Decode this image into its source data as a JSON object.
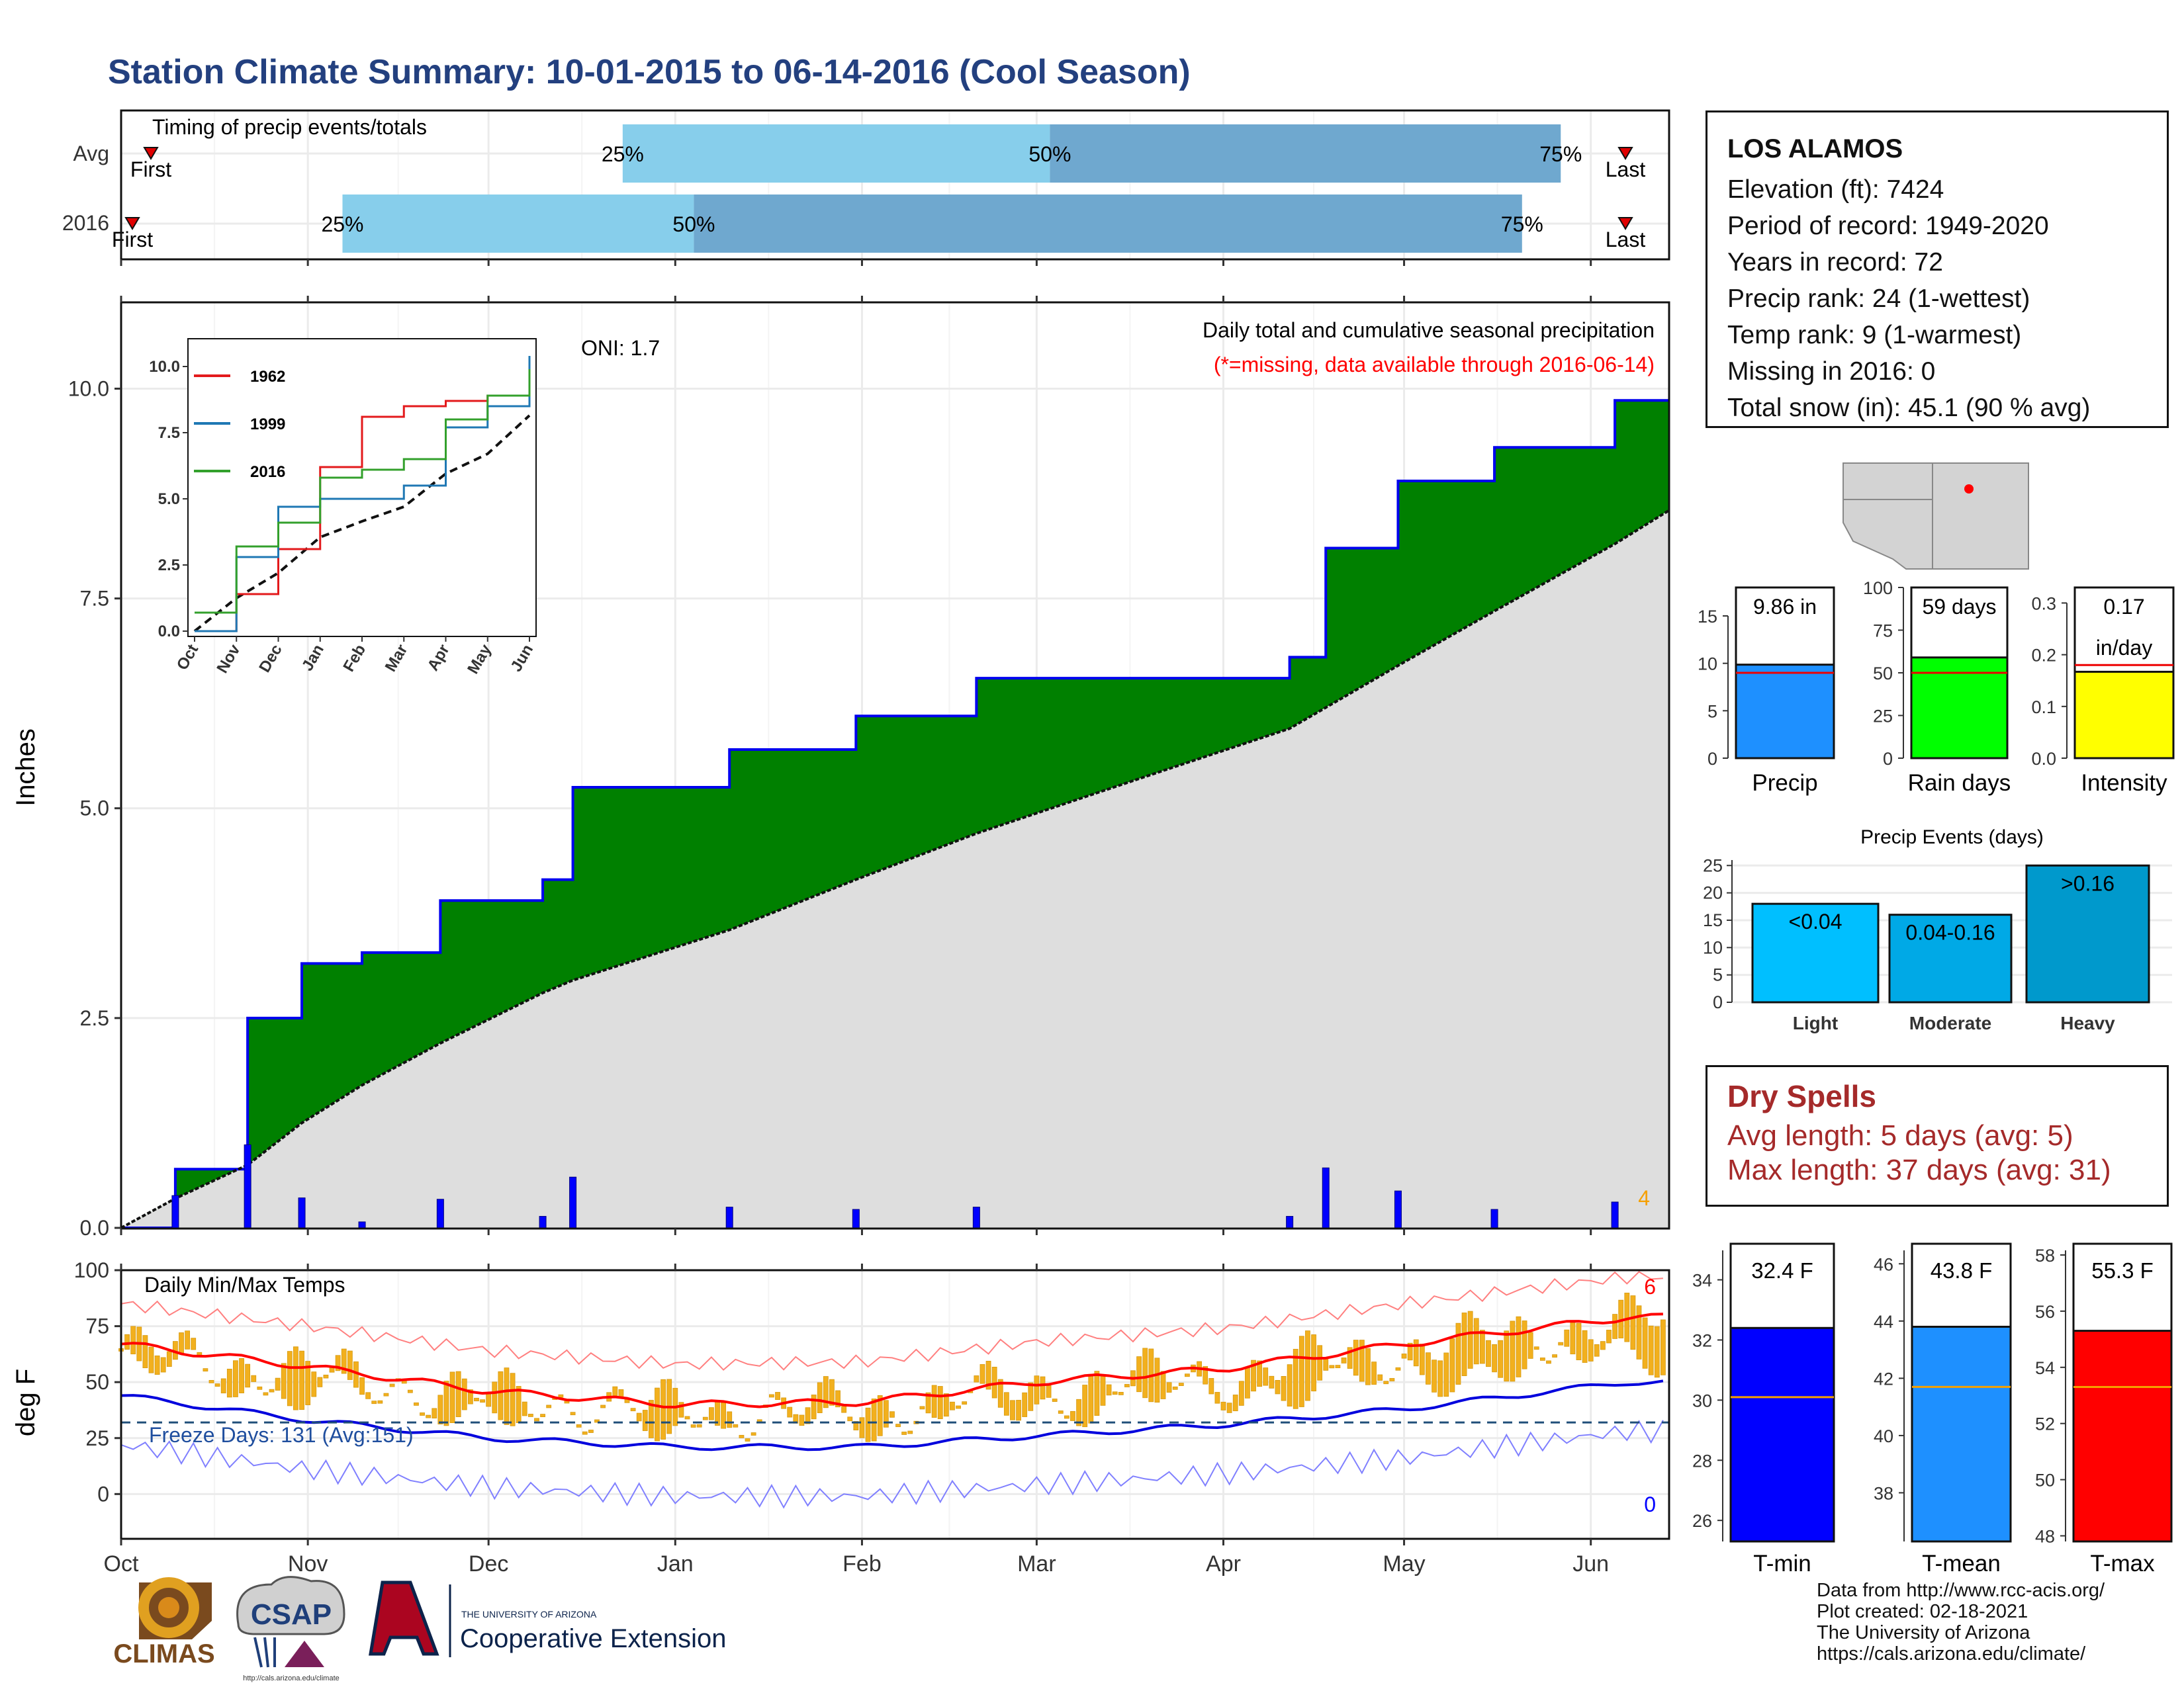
{
  "title": "Station Climate Summary: 10-01-2015 to 06-14-2016 (Cool Season)",
  "timing": {
    "label": "Timing of precip events/totals",
    "rows": [
      {
        "name": "Avg",
        "first": "First",
        "last": "Last",
        "p25": "25%",
        "p50": "50%",
        "p75": "75%",
        "q25": 0.324,
        "q50": 0.6,
        "q75": 0.93,
        "first_pos": 0.02,
        "last_pos": 0.998
      },
      {
        "name": "2016",
        "first": "First",
        "last": "Last",
        "p25": "25%",
        "p50": "50%",
        "p75": "75%",
        "q25": 0.143,
        "q50": 0.37,
        "q75": 0.905,
        "first_pos": 0.006,
        "last_pos": 0.998
      }
    ]
  },
  "precip_panel": {
    "title": "Daily total and cumulative seasonal precipitation",
    "missing_note": "(*=missing, data available through 2016-06-14)",
    "oni": "ONI: 1.7",
    "ylabel": "Inches",
    "yticks": [
      "0.0",
      "2.5",
      "5.0",
      "7.5",
      "10.0"
    ],
    "corner_count": "4"
  },
  "inset": {
    "yticks": [
      "0.0",
      "2.5",
      "5.0",
      "7.5",
      "10.0"
    ],
    "xticks": [
      "Oct",
      "Nov",
      "Dec",
      "Jan",
      "Feb",
      "Mar",
      "Apr",
      "May",
      "Jun"
    ],
    "legend": [
      {
        "name": "1962",
        "color": "#e31a1c"
      },
      {
        "name": "1999",
        "color": "#1f78b4"
      },
      {
        "name": "2016",
        "color": "#33a02c"
      }
    ]
  },
  "temp_panel": {
    "label": "Daily Min/Max Temps",
    "freeze": "Freeze Days: 131 (Avg:151)",
    "ylabel": "deg F",
    "yticks": [
      "0",
      "25",
      "50",
      "75",
      "100"
    ],
    "count_top": "6",
    "count_bottom": "0"
  },
  "months": [
    "Oct",
    "Nov",
    "Dec",
    "Jan",
    "Feb",
    "Mar",
    "Apr",
    "May",
    "Jun"
  ],
  "station": {
    "name": "LOS ALAMOS",
    "lines": [
      "Elevation (ft): 7424",
      "Period of record: 1949-2020",
      "Years in record: 72",
      "Precip rank: 24 (1-wettest)",
      "Temp rank: 9 (1-warmest)",
      "Missing in 2016: 0",
      "Total snow (in): 45.1 (90 % avg)"
    ]
  },
  "mini_bars": [
    {
      "label": "Precip",
      "value_text": "9.86 in",
      "value": 9.86,
      "avg": 9.0,
      "ymax": 18,
      "yticks": [
        "0",
        "5",
        "10",
        "15"
      ],
      "tickvals": [
        0,
        5,
        10,
        15
      ],
      "color": "#1e90ff"
    },
    {
      "label": "Rain days",
      "value_text": "59 days",
      "value": 59,
      "avg": 50,
      "ymax": 100,
      "yticks": [
        "0",
        "25",
        "50",
        "75",
        "100"
      ],
      "tickvals": [
        0,
        25,
        50,
        75,
        100
      ],
      "color": "#00ff00"
    },
    {
      "label": "Intensity",
      "value_text": "0.17",
      "value_text2": "in/day",
      "value": 0.167,
      "avg": 0.18,
      "ymax": 0.33,
      "yticks": [
        "0.0",
        "0.1",
        "0.2",
        "0.3"
      ],
      "tickvals": [
        0,
        0.1,
        0.2,
        0.3
      ],
      "color": "#ffff00"
    }
  ],
  "events": {
    "title": "Precip Events (days)",
    "yticks": [
      "0",
      "5",
      "10",
      "15",
      "20",
      "25"
    ],
    "bars": [
      {
        "label": "Light",
        "tag": "<0.04",
        "value": 18,
        "color": "#00bfff"
      },
      {
        "label": "Moderate",
        "tag": "0.04-0.16",
        "value": 16,
        "color": "#00a9e6"
      },
      {
        "label": "Heavy",
        "tag": ">0.16",
        "value": 25,
        "color": "#0099cc"
      }
    ]
  },
  "dry_spells": {
    "title": "Dry Spells",
    "avg": "Avg length: 5 days (avg: 5)",
    "max": "Max length: 37 days (avg: 31)"
  },
  "temp_bars": [
    {
      "label": "T-min",
      "value_text": "32.4 F",
      "value": 32.4,
      "avg": 30.1,
      "ymin": 25.3,
      "ymax": 35.2,
      "yticks": [
        "26",
        "28",
        "30",
        "32",
        "34"
      ],
      "tickvals": [
        26,
        28,
        30,
        32,
        34
      ],
      "color": "#0000ff"
    },
    {
      "label": "T-mean",
      "value_text": "43.8 F",
      "value": 43.8,
      "avg": 41.7,
      "ymin": 36.3,
      "ymax": 46.7,
      "yticks": [
        "38",
        "40",
        "42",
        "44",
        "46"
      ],
      "tickvals": [
        38,
        40,
        42,
        44,
        46
      ],
      "color": "#1e90ff"
    },
    {
      "label": "T-max",
      "value_text": "55.3 F",
      "value": 55.3,
      "avg": 53.3,
      "ymin": 47.8,
      "ymax": 58.4,
      "yticks": [
        "48",
        "50",
        "52",
        "54",
        "56",
        "58"
      ],
      "tickvals": [
        48,
        50,
        52,
        54,
        56,
        58
      ],
      "color": "#ff0000"
    }
  ],
  "logos": {
    "climas": "CLIMAS",
    "csap": "CSAP",
    "csap_url": "http://cals.arizona.edu/climate",
    "ua_small": "THE UNIVERSITY OF ARIZONA",
    "ua_big": "Cooperative Extension"
  },
  "footer": {
    "lines": [
      "Data from http://www.rcc-acis.org/",
      "Plot created: 02-18-2021",
      "The University of Arizona",
      "https://cals.arizona.edu/climate/"
    ]
  },
  "chart_data": [
    {
      "type": "area",
      "title": "Daily total and cumulative seasonal precipitation",
      "ylabel": "Inches",
      "ylim": [
        0,
        10.8
      ],
      "x": [
        "2015-10-01",
        "2015-10-10",
        "2015-10-22",
        "2015-10-31",
        "2015-11-10",
        "2015-11-23",
        "2015-12-10",
        "2015-12-15",
        "2016-01-10",
        "2016-01-31",
        "2016-02-20",
        "2016-03-20",
        "2016-04-12",
        "2016-04-18",
        "2016-04-30",
        "2016-05-16",
        "2016-06-05",
        "2016-06-14"
      ],
      "series": [
        {
          "name": "2016",
          "values": [
            0.0,
            0.7,
            2.5,
            3.15,
            3.28,
            3.9,
            4.15,
            5.25,
            5.7,
            6.1,
            6.55,
            6.55,
            6.8,
            8.1,
            8.9,
            9.3,
            9.86,
            9.86
          ]
        },
        {
          "name": "Avg",
          "values": [
            0.0,
            0.35,
            0.75,
            1.25,
            1.7,
            2.2,
            2.8,
            2.95,
            3.55,
            4.15,
            4.7,
            5.4,
            5.95,
            6.2,
            6.7,
            7.35,
            8.15,
            8.55
          ]
        }
      ]
    },
    {
      "type": "line",
      "x": [
        "Oct",
        "Nov",
        "Dec",
        "Jan",
        "Feb",
        "Mar",
        "Apr",
        "May",
        "Jun"
      ],
      "ylim": [
        0,
        10.5
      ],
      "series": [
        {
          "name": "1962",
          "values": [
            0.0,
            1.4,
            3.1,
            6.2,
            8.1,
            8.5,
            8.7,
            8.9,
            9.0
          ]
        },
        {
          "name": "1999",
          "values": [
            0.0,
            2.8,
            4.7,
            5.0,
            5.0,
            5.5,
            7.7,
            8.5,
            10.4
          ]
        },
        {
          "name": "2016",
          "values": [
            0.7,
            3.2,
            4.1,
            5.8,
            6.1,
            6.5,
            8.0,
            8.9,
            9.9
          ]
        }
      ]
    },
    {
      "type": "line",
      "title": "Daily Min/Max Temps",
      "ylabel": "deg F",
      "ylim": [
        -20,
        100
      ],
      "x": [
        "Oct",
        "Nov",
        "Dec",
        "Jan",
        "Feb",
        "Mar",
        "Apr",
        "May",
        "Jun"
      ],
      "series": [
        {
          "name": "avg max",
          "values": [
            67,
            57,
            46,
            40,
            41,
            50,
            56,
            67,
            77
          ]
        },
        {
          "name": "avg min",
          "values": [
            44,
            33,
            25,
            21,
            21,
            26,
            31,
            38,
            48
          ]
        }
      ]
    }
  ]
}
